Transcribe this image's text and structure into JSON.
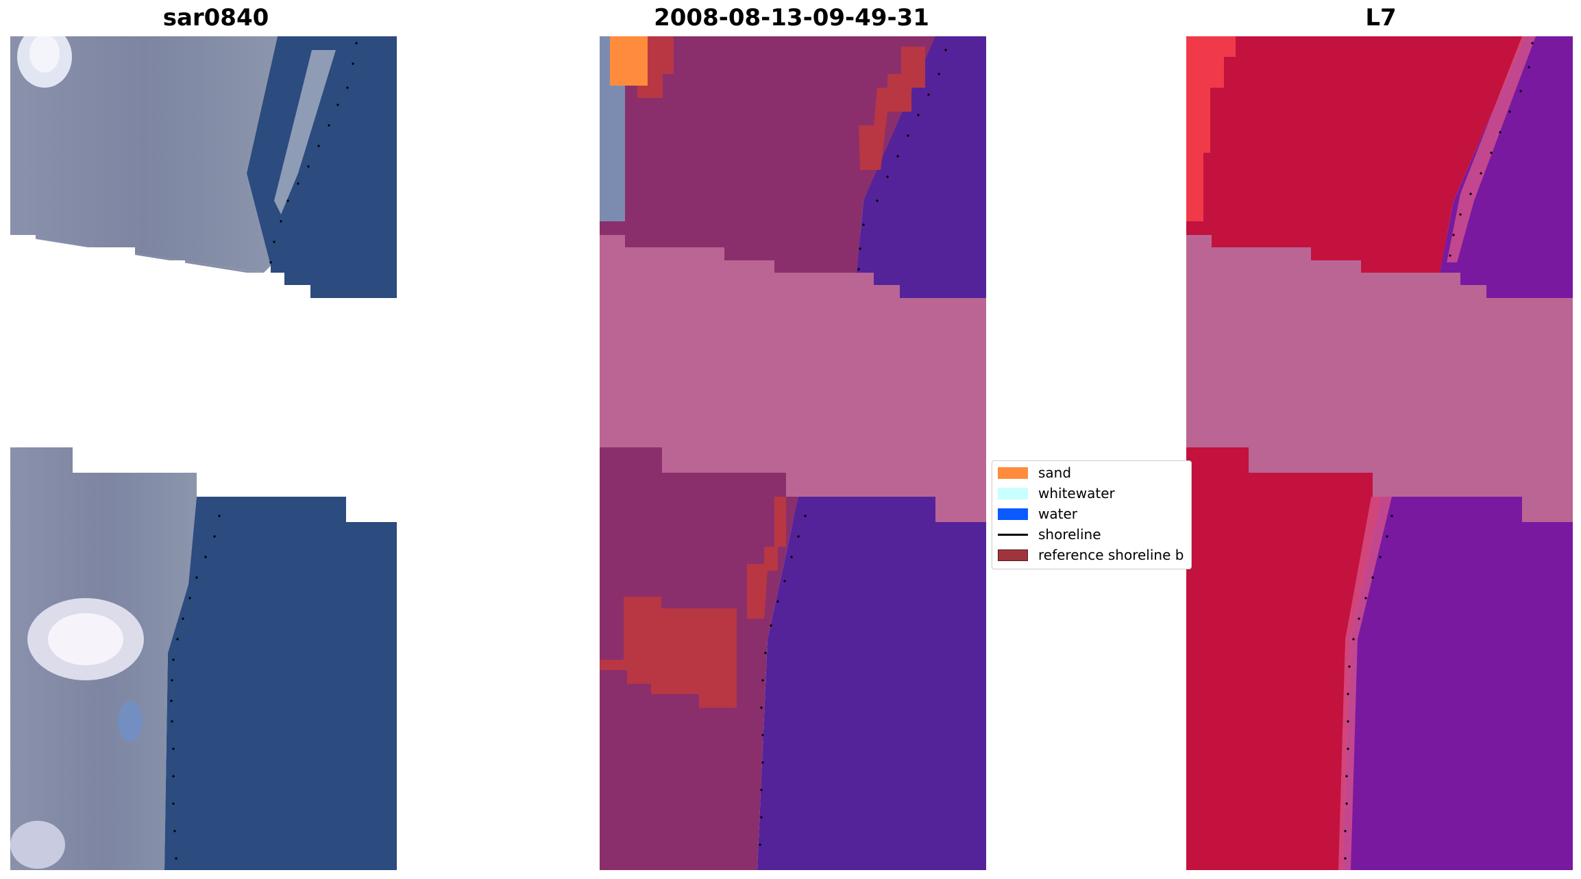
{
  "panels": [
    {
      "title": "sar0840"
    },
    {
      "title": "2008-08-13-09-49-31"
    },
    {
      "title": "L7"
    }
  ],
  "legend": {
    "items": [
      {
        "label": "sand",
        "color": "#ff8c3c",
        "kind": "patch"
      },
      {
        "label": "whitewater",
        "color": "#c8ffff",
        "kind": "patch"
      },
      {
        "label": "water",
        "color": "#0a5aff",
        "kind": "patch"
      },
      {
        "label": "shoreline",
        "color": "#000000",
        "kind": "line"
      },
      {
        "label": "reference shoreline b",
        "color": "#a0343c",
        "kind": "patch"
      }
    ]
  },
  "colors": {
    "sea_rgb": "#2c4b7f",
    "land_rgb": "#7f86a3",
    "class_land": "#8a2f6c",
    "class_water": "#54239a",
    "class_nodata": "#bb6595",
    "class_buffer": "#b83743",
    "class_sand": "#ff8c3c",
    "l7_land": "#c3123e",
    "l7_water": "#7819a0",
    "l7_nodata": "#bb6595"
  }
}
